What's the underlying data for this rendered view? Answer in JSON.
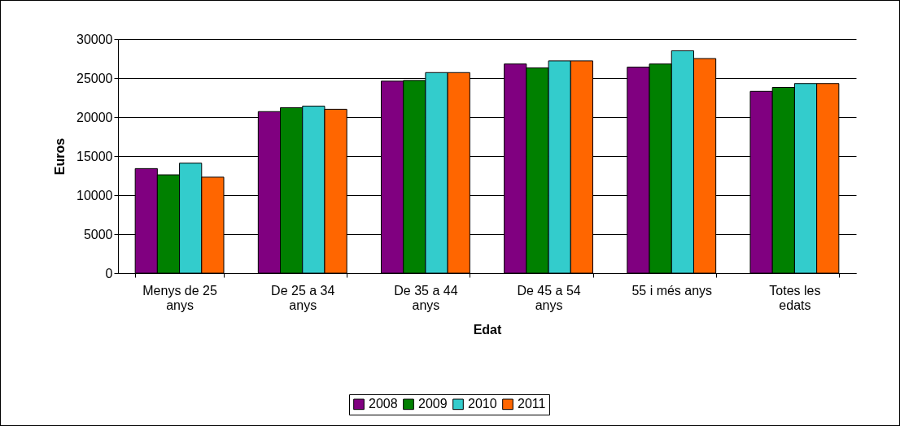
{
  "chart_data": {
    "type": "bar",
    "xlabel": "Edat",
    "ylabel": "Euros",
    "categories": [
      "Menys de 25 anys",
      "De 25 a 34 anys",
      "De 35 a 44 anys",
      "De 45 a 54 anys",
      "55 i més anys",
      "Totes les edats"
    ],
    "series": [
      {
        "name": "2008",
        "color": "#800080",
        "values": [
          13400,
          20700,
          24600,
          26800,
          26400,
          23300
        ]
      },
      {
        "name": "2009",
        "color": "#008000",
        "values": [
          12600,
          21200,
          24700,
          26300,
          26800,
          23800
        ]
      },
      {
        "name": "2010",
        "color": "#33cccc",
        "values": [
          14100,
          21400,
          25700,
          27200,
          28500,
          24300
        ]
      },
      {
        "name": "2011",
        "color": "#ff6600",
        "values": [
          12300,
          21000,
          25700,
          27200,
          27500,
          24300
        ]
      }
    ],
    "ylim": [
      0,
      30000
    ],
    "yticks": [
      0,
      5000,
      10000,
      15000,
      20000,
      25000,
      30000
    ],
    "grid": "y",
    "legend": "bottom"
  }
}
